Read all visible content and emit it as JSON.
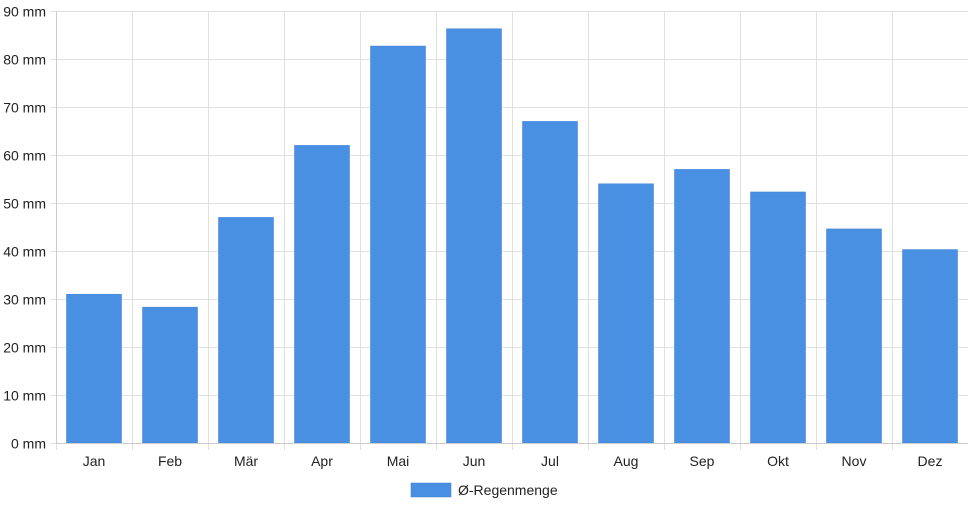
{
  "chart_data": {
    "type": "bar",
    "categories": [
      "Jan",
      "Feb",
      "Mär",
      "Apr",
      "Mai",
      "Jun",
      "Jul",
      "Aug",
      "Sep",
      "Okt",
      "Nov",
      "Dez"
    ],
    "series": [
      {
        "name": "Ø-Regenmenge",
        "values": [
          31,
          28.3,
          47,
          62,
          82.7,
          86.3,
          67,
          54,
          57,
          52.3,
          44.6,
          40.3
        ]
      }
    ],
    "y_ticks": [
      "0 mm",
      "10 mm",
      "20 mm",
      "30 mm",
      "40 mm",
      "50 mm",
      "60 mm",
      "70 mm",
      "80 mm",
      "90 mm"
    ],
    "ylim": [
      0,
      90
    ],
    "y_unit": "mm",
    "grid": true,
    "legend_position": "bottom",
    "colors": {
      "bar": "#4a90e2",
      "grid": "#e0e0e0",
      "axis": "#cccccc",
      "text": "#222222"
    }
  }
}
